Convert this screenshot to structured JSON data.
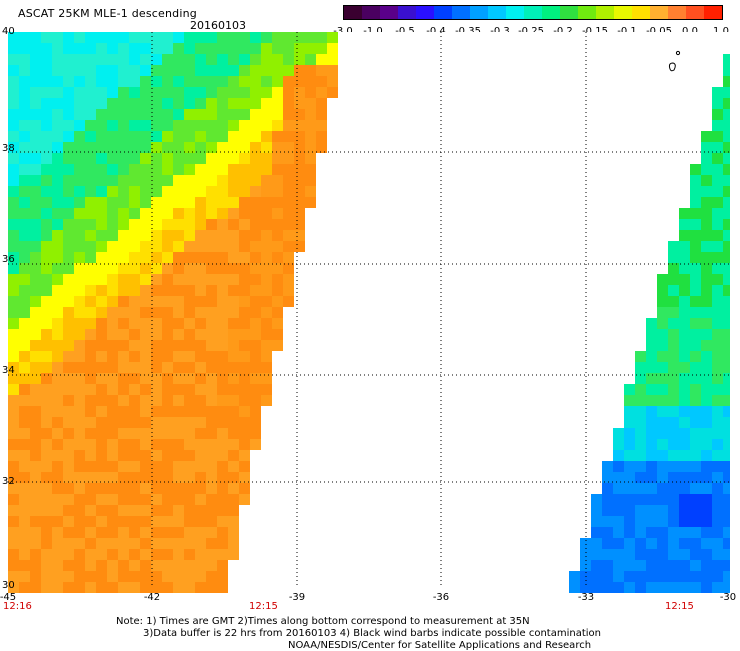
{
  "header": {
    "title": "ASCAT 25KM MLE-1 descending",
    "date": "20160103"
  },
  "colorbar": {
    "labels": [
      "-3.0",
      "-1.0",
      "-0.5",
      "-0.4",
      "-0.35",
      "-0.3",
      "-0.25",
      "-0.2",
      "-0.15",
      "-0.1",
      "-0.05",
      "0.0",
      "1.0"
    ],
    "colors": [
      "#3a0030",
      "#5a008a",
      "#2a10ff",
      "#0040ff",
      "#0080ff",
      "#00b8ff",
      "#00f0f0",
      "#00f0a0",
      "#20e040",
      "#90f000",
      "#ffff00",
      "#ff9020",
      "#ff2000"
    ]
  },
  "map": {
    "lat_labels": [
      "40",
      "38",
      "36",
      "34",
      "32",
      "30"
    ],
    "lon_labels": [
      "-45",
      "-42",
      "-39",
      "-36",
      "-33",
      "-30"
    ],
    "time_labels": [
      "12:16",
      "12:15",
      "12:15"
    ]
  },
  "notes": {
    "line1": "Note: 1) Times are GMT 2)Times along bottom correspond to measurement at 35N",
    "line2": "3)Data buffer is 22 hrs from 20160103 4) Black wind barbs indicate possible contamination",
    "line3": "NOAA/NESDIS/Center for Satellite Applications and Research"
  }
}
